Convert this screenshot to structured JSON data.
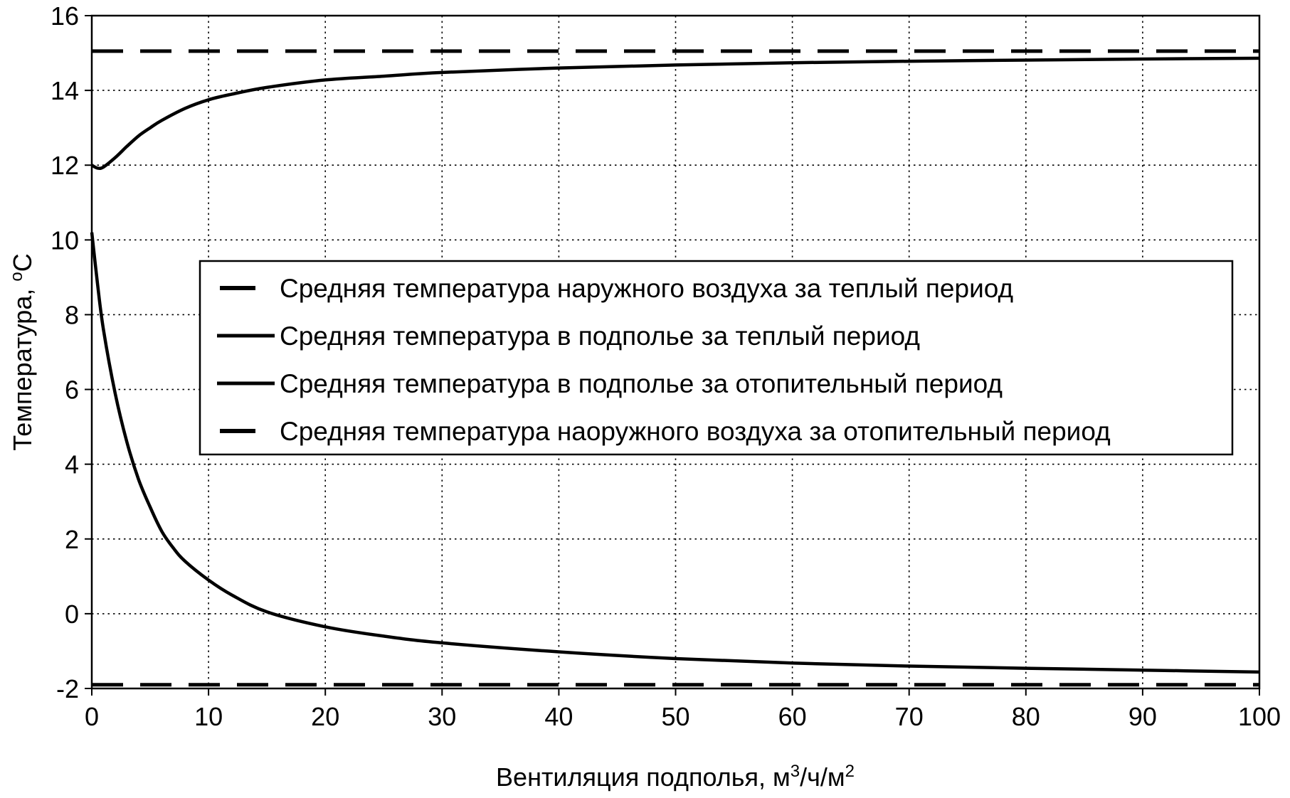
{
  "chart_data": {
    "type": "line",
    "xlabel": "Вентиляция подполья, м",
    "xlabel_sup1": "3",
    "xlabel_mid": "/ч/м",
    "xlabel_sup2": "2",
    "ylabel": "Температура, ",
    "ylabel_unit_sup": "o",
    "ylabel_unit": "C",
    "xlim": [
      0,
      100
    ],
    "ylim": [
      -2,
      16
    ],
    "xticks": [
      0,
      10,
      20,
      30,
      40,
      50,
      60,
      70,
      80,
      90,
      100
    ],
    "yticks": [
      -2,
      0,
      2,
      4,
      6,
      8,
      10,
      12,
      14,
      16
    ],
    "grid": true,
    "legend_position": "center-right",
    "series": [
      {
        "name": "Средняя температура наружного воздуха за теплый период",
        "style": "dashed",
        "color": "#000000",
        "x": [
          0,
          100
        ],
        "y": [
          15.05,
          15.05
        ]
      },
      {
        "name": "Средняя температура в подполье за теплый период",
        "style": "solid",
        "color": "#000000",
        "x": [
          0,
          0.5,
          1,
          2,
          3,
          4,
          5,
          6,
          8,
          10,
          12,
          15,
          20,
          25,
          30,
          40,
          50,
          60,
          70,
          80,
          90,
          100
        ],
        "y": [
          12.0,
          11.92,
          11.95,
          12.2,
          12.5,
          12.78,
          13.0,
          13.2,
          13.52,
          13.75,
          13.9,
          14.08,
          14.28,
          14.38,
          14.48,
          14.6,
          14.68,
          14.74,
          14.78,
          14.81,
          14.84,
          14.86
        ]
      },
      {
        "name": "Средняя температура в подполье за отопительный период",
        "style": "solid",
        "color": "#000000",
        "x": [
          0,
          0.5,
          1,
          2,
          3,
          4,
          5,
          6,
          7,
          8,
          10,
          12,
          15,
          20,
          25,
          30,
          40,
          50,
          60,
          70,
          80,
          90,
          100
        ],
        "y": [
          10.2,
          8.8,
          7.6,
          5.9,
          4.6,
          3.6,
          2.85,
          2.2,
          1.75,
          1.4,
          0.9,
          0.5,
          0.05,
          -0.35,
          -0.6,
          -0.78,
          -1.02,
          -1.2,
          -1.32,
          -1.4,
          -1.46,
          -1.51,
          -1.56
        ]
      },
      {
        "name": "Средняя температура наоружного воздуха за отопительный период",
        "style": "dashed",
        "color": "#000000",
        "x": [
          0,
          100
        ],
        "y": [
          -1.9,
          -1.9
        ]
      }
    ]
  }
}
